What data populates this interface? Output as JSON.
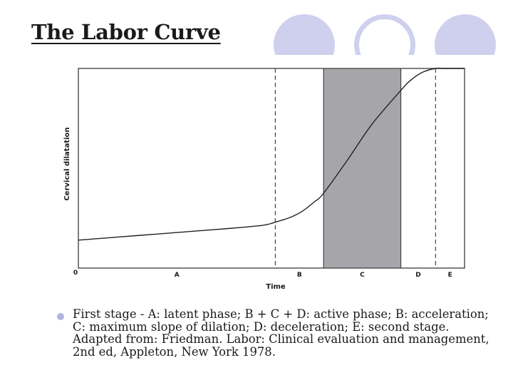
{
  "slide": {
    "title": "The Labor Curve",
    "caption": "First stage - A: latent phase; B + C + D: active phase; B: acceleration; C: maximum slope of dilation; D: deceleration; E: second stage.",
    "source": "Adapted from: Friedman. Labor: Clinical evaluation and management, 2nd ed, Appleton, New York 1978.",
    "accent_color": "#cfd0ee",
    "bullet_color": "#b3b4e4"
  },
  "chart_data": {
    "type": "line",
    "xlabel": "Time",
    "ylabel": "Cervical dilatation",
    "origin_label": "0",
    "xlim": [
      0,
      100
    ],
    "ylim": [
      0,
      100
    ],
    "grid": false,
    "phases": [
      {
        "label": "A",
        "start": 0,
        "end": 51
      },
      {
        "label": "B",
        "start": 51,
        "end": 63.5
      },
      {
        "label": "C",
        "start": 63.5,
        "end": 83.5,
        "shaded": true,
        "shade_color": "#a6a6aa"
      },
      {
        "label": "D",
        "start": 83.5,
        "end": 92.5
      },
      {
        "label": "E",
        "start": 92.5,
        "end": 100
      }
    ],
    "curve": {
      "x": [
        0,
        10,
        20,
        30,
        40,
        48,
        51,
        55,
        58,
        61,
        63.5,
        70,
        76,
        83.5,
        86,
        89,
        92.5,
        95,
        100
      ],
      "y": [
        14,
        15.5,
        17,
        18.5,
        20,
        21.5,
        23,
        25.5,
        28.5,
        33,
        37.5,
        55,
        72,
        89,
        94,
        98,
        100,
        100,
        100
      ]
    }
  }
}
